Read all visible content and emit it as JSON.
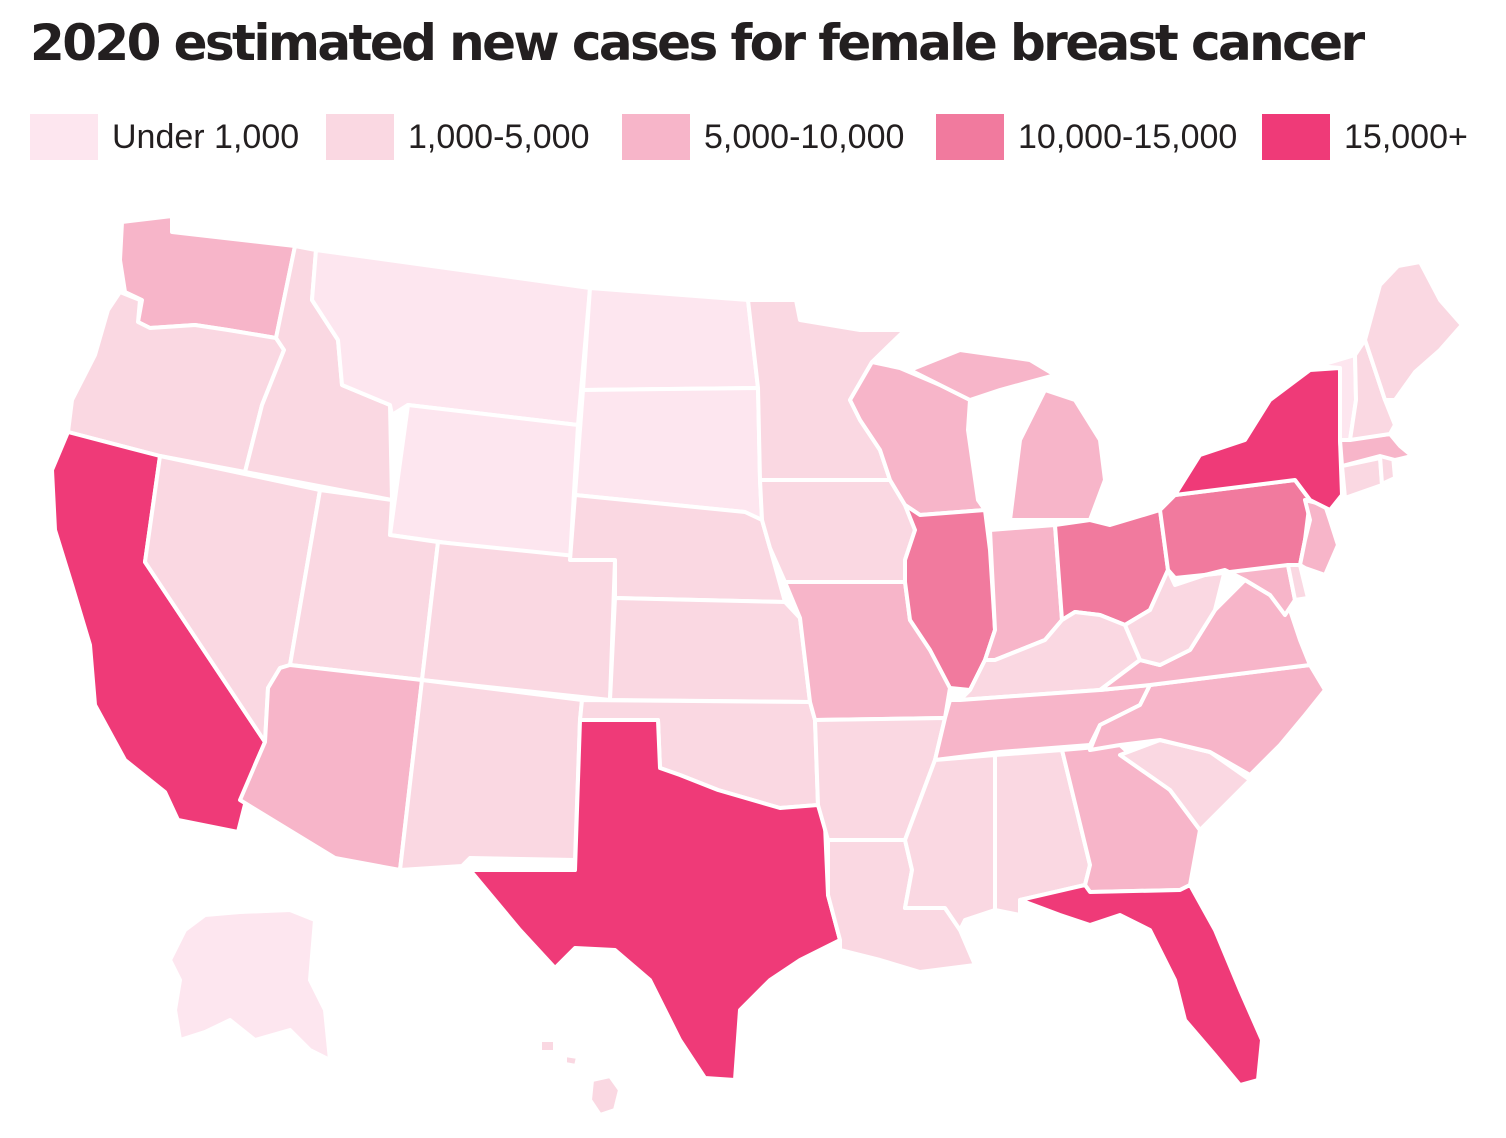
{
  "title": "2020 estimated new cases for female breast cancer",
  "legend": [
    {
      "label": "Under 1,000",
      "color": "#fde6ef"
    },
    {
      "label": "1,000-5,000",
      "color": "#fad8e2"
    },
    {
      "label": "5,000-10,000",
      "color": "#f7b5c9"
    },
    {
      "label": "10,000-15,000",
      "color": "#f17a9e"
    },
    {
      "label": "15,000+",
      "color": "#ef3a78"
    }
  ],
  "states": {
    "WA": 2,
    "OR": 1,
    "CA": 4,
    "NV": 1,
    "ID": 1,
    "MT": 0,
    "WY": 0,
    "UT": 1,
    "AZ": 2,
    "CO": 1,
    "NM": 1,
    "ND": 0,
    "SD": 0,
    "NE": 1,
    "KS": 1,
    "OK": 1,
    "TX": 4,
    "MN": 1,
    "IA": 1,
    "MO": 2,
    "AR": 1,
    "LA": 1,
    "WI": 2,
    "IL": 3,
    "MI": 2,
    "IN": 2,
    "OH": 3,
    "KY": 1,
    "TN": 2,
    "MS": 1,
    "AL": 1,
    "GA": 2,
    "FL": 4,
    "SC": 1,
    "NC": 2,
    "VA": 2,
    "WV": 1,
    "PA": 3,
    "NY": 4,
    "NJ": 2,
    "DE": 1,
    "MD": 2,
    "CT": 1,
    "RI": 1,
    "MA": 2,
    "VT": 0,
    "NH": 1,
    "ME": 1,
    "AK": 0,
    "HI": 1
  }
}
